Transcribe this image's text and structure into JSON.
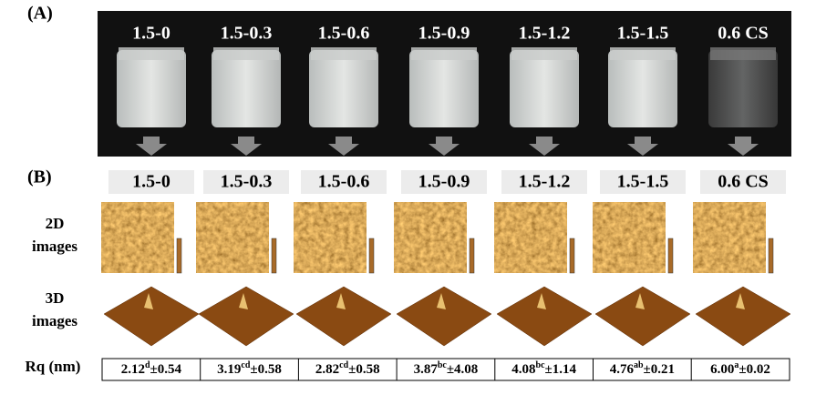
{
  "panel_a": {
    "label": "(A)",
    "samples": [
      "1.5-0",
      "1.5-0.3",
      "1.5-0.6",
      "1.5-0.9",
      "1.5-1.2",
      "1.5-1.5",
      "0.6 CS"
    ]
  },
  "panel_b": {
    "label": "(B)",
    "samples": [
      "1.5-0",
      "1.5-0.3",
      "1.5-0.6",
      "1.5-0.9",
      "1.5-1.2",
      "1.5-1.5",
      "0.6 CS"
    ],
    "row_2d": [
      "2D",
      "images"
    ],
    "row_3d": [
      "3D",
      "images"
    ],
    "rq_label": "Rq (nm)",
    "rq": [
      {
        "mean": "2.12",
        "letter": "d",
        "sd": "±0.54"
      },
      {
        "mean": "3.19",
        "letter": "cd",
        "sd": "±0.58"
      },
      {
        "mean": "2.82",
        "letter": "cd",
        "sd": "±0.58"
      },
      {
        "mean": "3.87",
        "letter": "bc",
        "sd": "±4.08"
      },
      {
        "mean": "4.08",
        "letter": "bc",
        "sd": "±1.14"
      },
      {
        "mean": "4.76",
        "letter": "ab",
        "sd": "±0.21"
      },
      {
        "mean": "6.00",
        "letter": "a",
        "sd": "±0.02"
      }
    ]
  }
}
